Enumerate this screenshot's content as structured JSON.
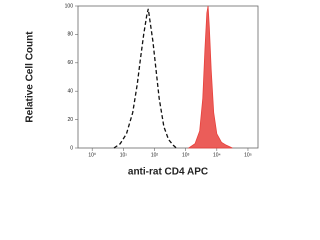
{
  "chart_data": {
    "type": "histogram-overlay",
    "ylabel": "Relative Cell Count",
    "xlabel": "anti-rat CD4 APC",
    "x_scale": "log",
    "xlim": [
      0.35,
      210000
    ],
    "ylim": [
      0,
      100
    ],
    "yticks": [
      0,
      20,
      40,
      60,
      80,
      100
    ],
    "xticks": [
      {
        "value": 1,
        "label": "10⁰"
      },
      {
        "value": 10,
        "label": "10¹"
      },
      {
        "value": 100,
        "label": "10²"
      },
      {
        "value": 1000,
        "label": "10³"
      },
      {
        "value": 10000,
        "label": "10⁴"
      },
      {
        "value": 100000,
        "label": "10⁵"
      }
    ],
    "grid": false,
    "series": [
      {
        "color": "#111111",
        "style": "dashed",
        "fill": false,
        "x": [
          5,
          7.9,
          12.6,
          20,
          28,
          35,
          45,
          56,
          63,
          71,
          89,
          112,
          141,
          200,
          282,
          398,
          501
        ],
        "values": [
          0,
          3,
          10,
          25,
          45,
          62,
          80,
          93,
          98,
          90,
          75,
          55,
          35,
          15,
          6,
          2,
          0
        ]
      },
      {
        "color": "#e8413c",
        "style": "solid",
        "fill": true,
        "x": [
          1259,
          1995,
          2818,
          3548,
          4169,
          4786,
          5248,
          5754,
          6607,
          7943,
          10000,
          14125,
          19953,
          31623
        ],
        "values": [
          0,
          3,
          12,
          35,
          70,
          95,
          100,
          85,
          55,
          25,
          10,
          4,
          2,
          0
        ]
      }
    ]
  }
}
